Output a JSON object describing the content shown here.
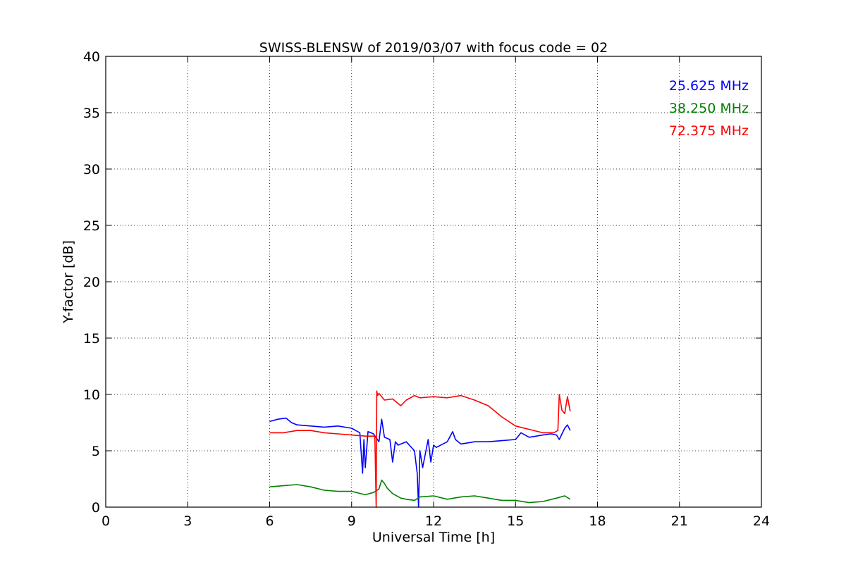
{
  "chart_data": {
    "type": "line",
    "title": "SWISS-BLENSW of 2019/03/07 with focus code = 02",
    "xlabel": "Universal Time [h]",
    "ylabel": "Y-factor [dB]",
    "xlim": [
      0,
      24
    ],
    "ylim": [
      0,
      40
    ],
    "xticks": [
      0,
      3,
      6,
      9,
      12,
      15,
      18,
      21,
      24
    ],
    "yticks": [
      0,
      5,
      10,
      15,
      20,
      25,
      30,
      35,
      40
    ],
    "grid": true,
    "legend_position": "top-right",
    "series": [
      {
        "name": "25.625 MHz",
        "color": "#0000ff",
        "x": [
          6.0,
          6.3,
          6.6,
          6.8,
          7.0,
          7.5,
          8.0,
          8.5,
          9.0,
          9.3,
          9.4,
          9.45,
          9.5,
          9.6,
          9.8,
          10.0,
          10.1,
          10.2,
          10.4,
          10.5,
          10.6,
          10.7,
          11.0,
          11.3,
          11.4,
          11.45,
          11.5,
          11.6,
          11.8,
          11.9,
          12.0,
          12.1,
          12.5,
          12.7,
          12.8,
          13.0,
          13.5,
          14.0,
          14.5,
          15.0,
          15.2,
          15.5,
          16.0,
          16.3,
          16.5,
          16.6,
          16.7,
          16.8,
          16.9,
          17.0
        ],
        "y": [
          7.6,
          7.8,
          7.9,
          7.5,
          7.3,
          7.2,
          7.1,
          7.2,
          7.0,
          6.6,
          3.0,
          6.0,
          3.5,
          6.7,
          6.5,
          5.8,
          7.8,
          6.2,
          6.0,
          4.0,
          5.8,
          5.5,
          5.8,
          5.0,
          3.0,
          0.0,
          5.0,
          3.5,
          6.0,
          4.0,
          5.5,
          5.3,
          5.8,
          6.7,
          6.0,
          5.6,
          5.8,
          5.8,
          5.9,
          6.0,
          6.6,
          6.2,
          6.4,
          6.5,
          6.4,
          6.0,
          6.5,
          7.0,
          7.3,
          6.8
        ]
      },
      {
        "name": "38.250 MHz",
        "color": "#008000",
        "x": [
          6.0,
          6.5,
          7.0,
          7.5,
          8.0,
          8.5,
          9.0,
          9.5,
          9.8,
          10.0,
          10.1,
          10.2,
          10.3,
          10.5,
          10.8,
          11.0,
          11.3,
          11.5,
          12.0,
          12.5,
          13.0,
          13.5,
          14.0,
          14.5,
          15.0,
          15.5,
          16.0,
          16.5,
          16.8,
          17.0
        ],
        "y": [
          1.8,
          1.9,
          2.0,
          1.8,
          1.5,
          1.4,
          1.4,
          1.1,
          1.3,
          1.6,
          2.4,
          2.1,
          1.7,
          1.2,
          0.8,
          0.7,
          0.6,
          0.9,
          1.0,
          0.7,
          0.9,
          1.0,
          0.8,
          0.6,
          0.6,
          0.4,
          0.5,
          0.8,
          1.0,
          0.7
        ]
      },
      {
        "name": "72.375 MHz",
        "color": "#ff0000",
        "x": [
          6.0,
          6.5,
          7.0,
          7.5,
          8.0,
          8.5,
          9.0,
          9.5,
          9.85,
          9.9,
          9.92,
          9.95,
          10.0,
          10.2,
          10.5,
          10.8,
          11.0,
          11.3,
          11.5,
          12.0,
          12.5,
          13.0,
          13.5,
          14.0,
          14.5,
          15.0,
          15.5,
          16.0,
          16.4,
          16.55,
          16.6,
          16.7,
          16.8,
          16.9,
          17.0
        ],
        "y": [
          6.6,
          6.6,
          6.8,
          6.8,
          6.6,
          6.5,
          6.4,
          6.3,
          6.3,
          0.0,
          10.3,
          9.9,
          10.1,
          9.5,
          9.6,
          9.0,
          9.5,
          9.9,
          9.7,
          9.8,
          9.7,
          9.9,
          9.5,
          9.0,
          8.0,
          7.2,
          6.9,
          6.6,
          6.6,
          6.8,
          10.0,
          8.6,
          8.3,
          9.8,
          8.5
        ]
      }
    ]
  }
}
